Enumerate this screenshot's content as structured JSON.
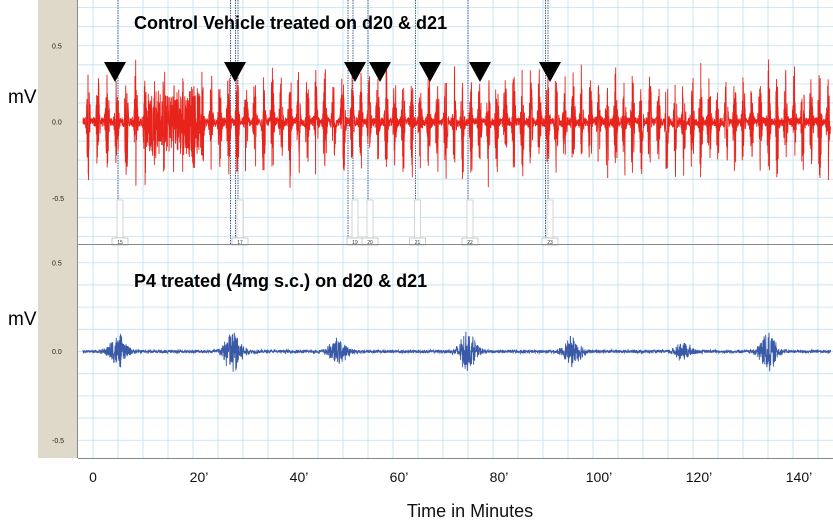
{
  "chart_data": [
    {
      "type": "line",
      "title": "Control Vehicle treated on d20 & d21",
      "ylabel": "mV",
      "xlabel": "",
      "xlim": [
        -3,
        148
      ],
      "ylim": [
        -0.8,
        0.8
      ],
      "y_ticks": [
        "0.5",
        "0.0",
        "-0.5"
      ],
      "y_tick_values": [
        0.5,
        0.0,
        -0.5
      ],
      "color": "#e8231c",
      "signal": "frequent high-amplitude burst contractions",
      "baseline_amplitude": 0.03,
      "burst_peak_amplitude": 0.4,
      "event_arrows_x": [
        4,
        28,
        52,
        57,
        67,
        77,
        91
      ],
      "event_lines_x": [
        5,
        27.5,
        28.5,
        29,
        51,
        52,
        55,
        64.5,
        75,
        90.5,
        91
      ],
      "event_labels": [
        "15",
        "17",
        "19",
        "20",
        "21",
        "22",
        "23"
      ],
      "event_label_x": [
        5,
        29,
        52,
        55,
        64.5,
        75,
        91
      ]
    },
    {
      "type": "line",
      "title": "P4 treated (4mg  s.c.) on d20 & d21",
      "ylabel": "mV",
      "xlabel": "Time in Minutes",
      "xlim": [
        -3,
        148
      ],
      "ylim": [
        -0.6,
        0.6
      ],
      "y_ticks": [
        "0.5",
        "0.0",
        "-0.5"
      ],
      "y_tick_values": [
        0.5,
        0.0,
        -0.5
      ],
      "x_ticks": [
        "0",
        "20’",
        "40’",
        "60’",
        "80’",
        "100’",
        "120’",
        "140’"
      ],
      "x_tick_values": [
        0,
        20,
        40,
        60,
        80,
        100,
        120,
        140
      ],
      "color": "#3a5aa8",
      "signal": "sparse low-amplitude bursts",
      "baseline_amplitude": 0.01,
      "burst_centers_x": [
        5,
        28,
        49,
        75,
        96,
        118,
        135
      ],
      "burst_amplitudes": [
        0.09,
        0.14,
        0.07,
        0.11,
        0.08,
        0.05,
        0.11
      ]
    }
  ]
}
